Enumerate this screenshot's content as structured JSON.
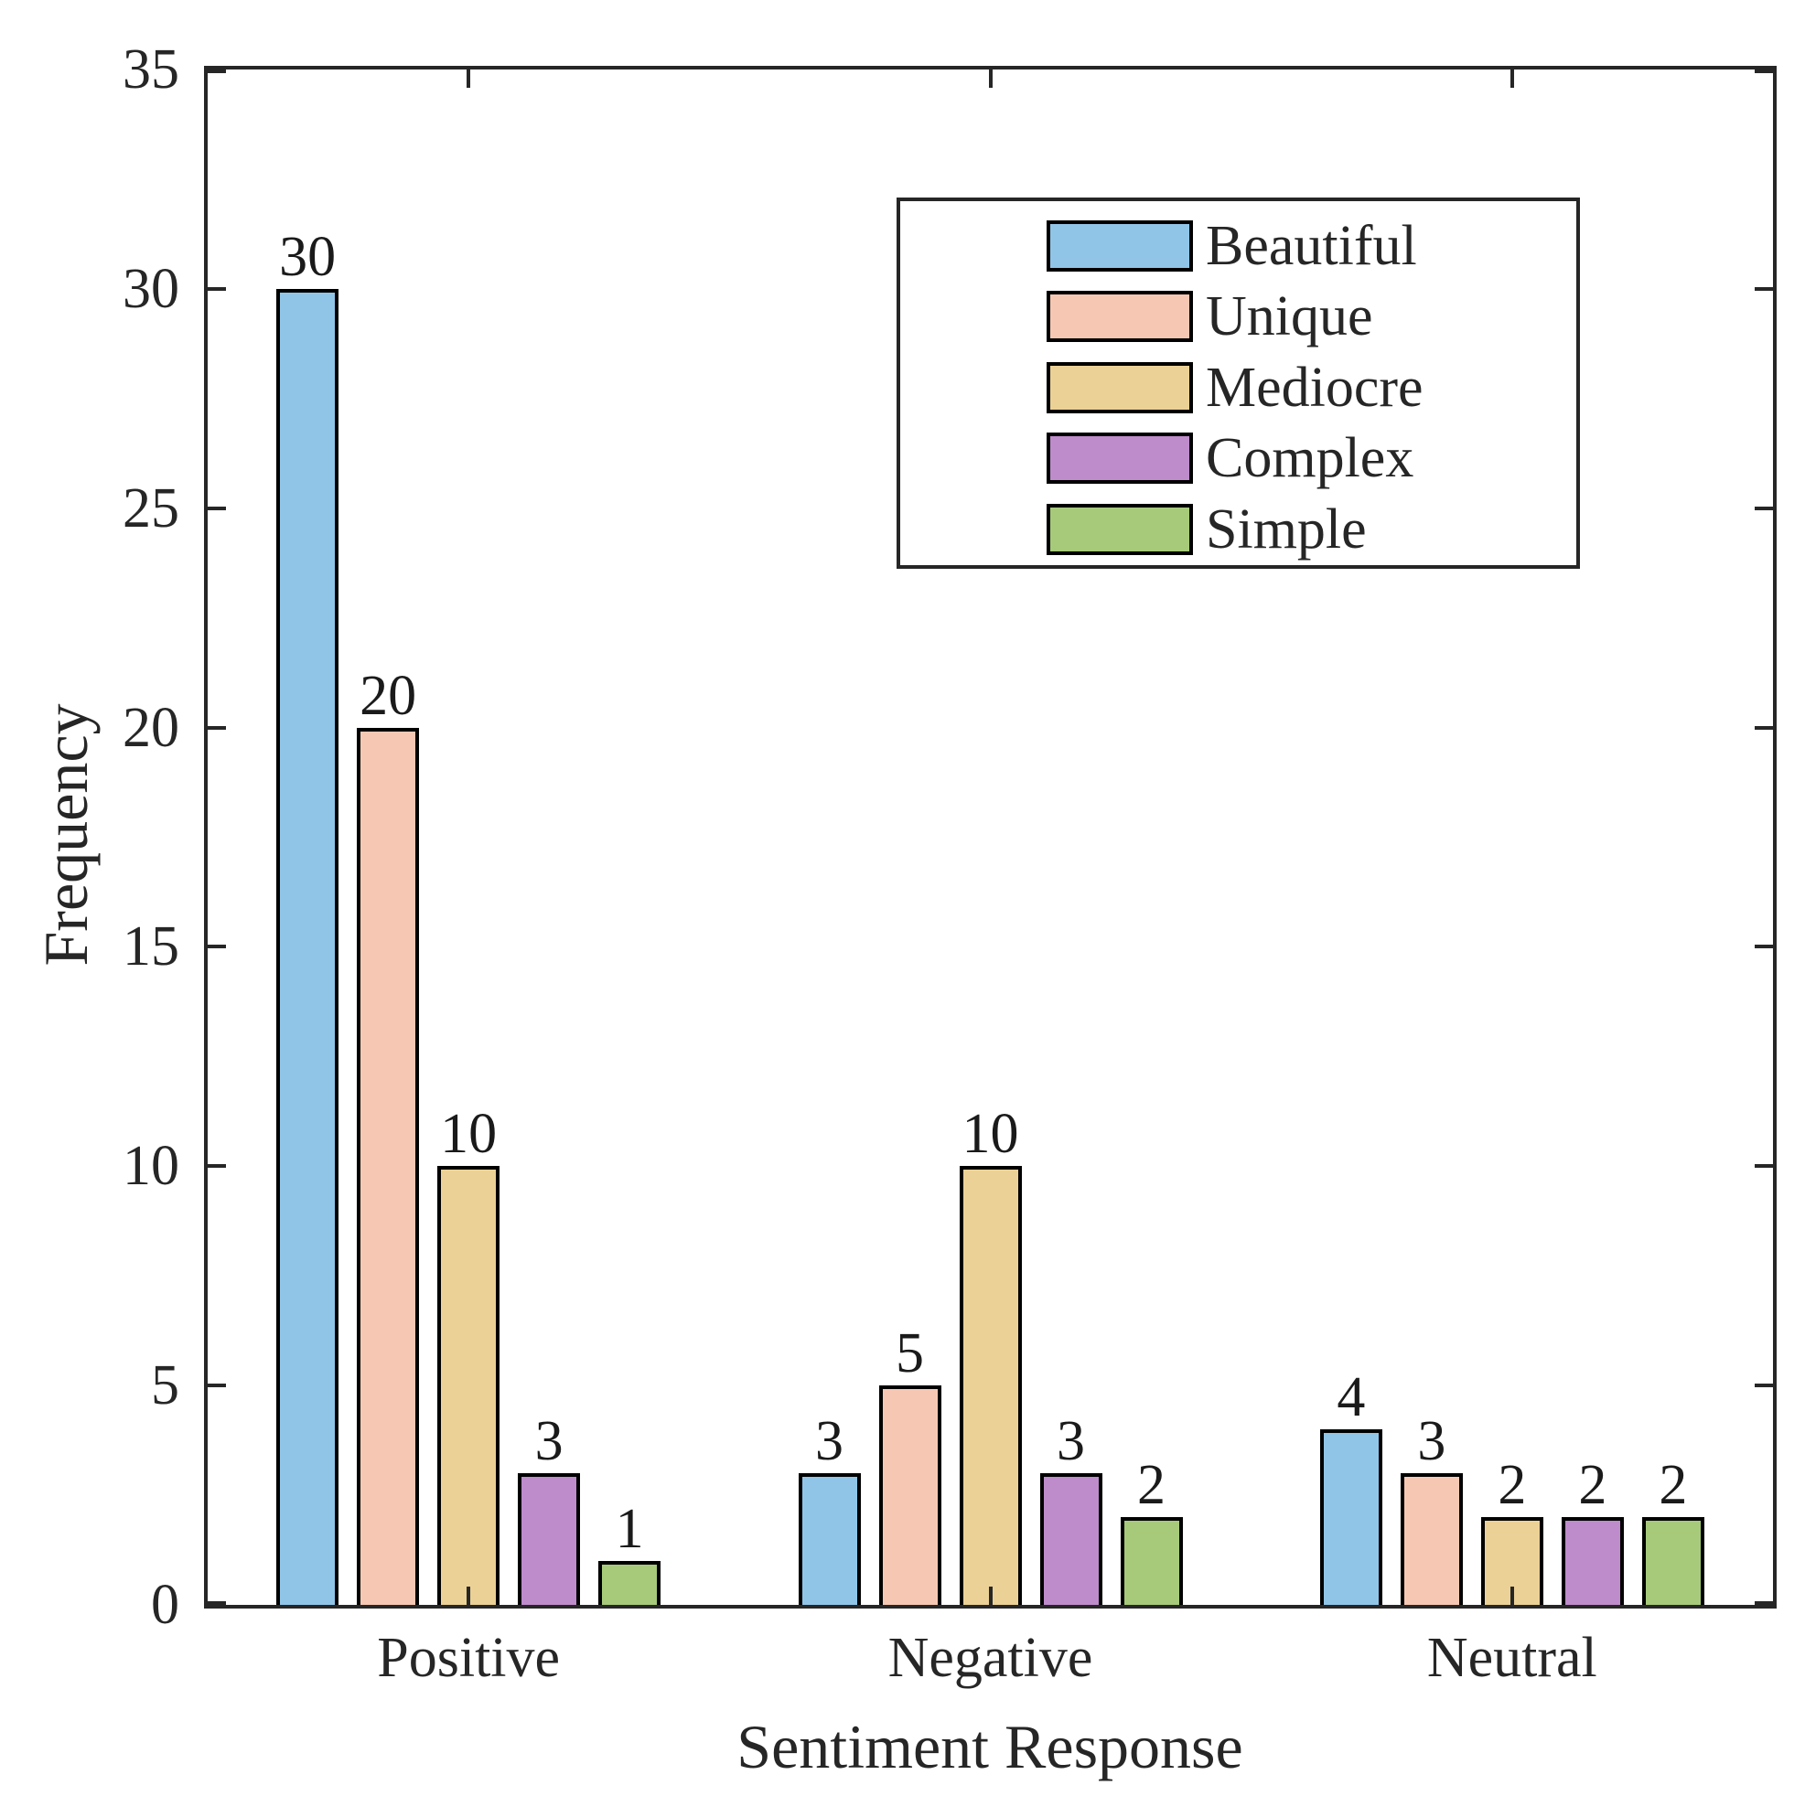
{
  "figure": {
    "background": "#ffffff",
    "axis_color": "#262626"
  },
  "chart_data": {
    "type": "bar",
    "title": "",
    "xlabel": "Sentiment Response",
    "ylabel": "Frequency",
    "categories": [
      "Positive",
      "Negative",
      "Neutral"
    ],
    "series": [
      {
        "name": "Beautiful",
        "color": "#90C5E8",
        "values": [
          30,
          3,
          4
        ]
      },
      {
        "name": "Unique",
        "color": "#F6C8B3",
        "values": [
          20,
          5,
          3
        ]
      },
      {
        "name": "Mediocre",
        "color": "#EBD195",
        "values": [
          10,
          10,
          2
        ]
      },
      {
        "name": "Complex",
        "color": "#BE8CCB",
        "values": [
          3,
          3,
          2
        ]
      },
      {
        "name": "Simple",
        "color": "#A7CA7A",
        "values": [
          1,
          2,
          2
        ]
      }
    ],
    "ylim": [
      0,
      35
    ],
    "yticks": [
      0,
      5,
      10,
      15,
      20,
      25,
      30,
      35
    ],
    "bar_edge_color": "#000000",
    "grid": false,
    "legend_position": "upper-right-inside",
    "data_labels": true
  }
}
